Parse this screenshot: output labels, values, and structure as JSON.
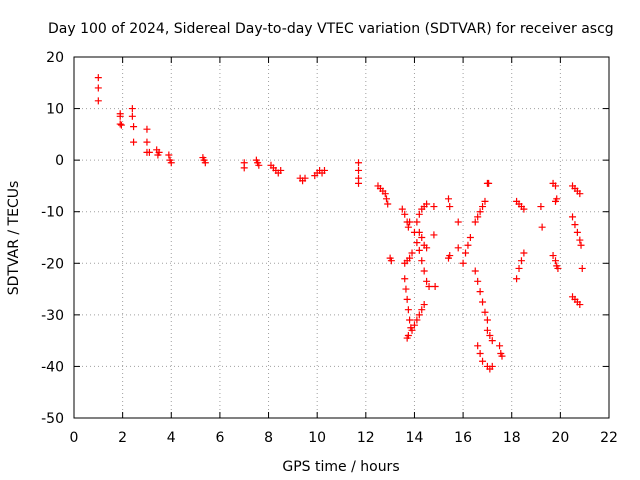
{
  "chart_data": {
    "type": "scatter",
    "title": "Day 100 of 2024, Sidereal Day-to-day VTEC variation (SDTVAR) for receiver ascg",
    "xlabel": "GPS time / hours",
    "ylabel": "SDTVAR / TECUs",
    "xlim": [
      0,
      22
    ],
    "ylim": [
      -50,
      20
    ],
    "x_ticks": [
      "0",
      "2",
      "4",
      "6",
      "8",
      "10",
      "12",
      "14",
      "16",
      "18",
      "20",
      "22"
    ],
    "y_ticks": [
      "20",
      "10",
      "0",
      "-10",
      "-20",
      "-30",
      "-40",
      "-50"
    ],
    "grid": true,
    "marker": "+",
    "color": "#ff0000",
    "series": [
      {
        "name": "SDTVAR",
        "points": [
          [
            1.0,
            16.0
          ],
          [
            1.0,
            14.0
          ],
          [
            1.0,
            11.5
          ],
          [
            1.9,
            9.0
          ],
          [
            1.9,
            8.5
          ],
          [
            1.9,
            7.0
          ],
          [
            1.95,
            6.8
          ],
          [
            2.4,
            10.0
          ],
          [
            2.4,
            8.5
          ],
          [
            2.45,
            6.5
          ],
          [
            2.45,
            3.5
          ],
          [
            3.0,
            6.0
          ],
          [
            3.0,
            3.5
          ],
          [
            3.0,
            1.5
          ],
          [
            3.1,
            1.5
          ],
          [
            3.4,
            2.0
          ],
          [
            3.45,
            1.0
          ],
          [
            3.5,
            1.5
          ],
          [
            3.9,
            1.0
          ],
          [
            3.95,
            0.0
          ],
          [
            4.0,
            -0.5
          ],
          [
            5.3,
            0.5
          ],
          [
            5.35,
            0.0
          ],
          [
            5.4,
            -0.5
          ],
          [
            7.0,
            -0.5
          ],
          [
            7.0,
            -1.5
          ],
          [
            7.5,
            0.0
          ],
          [
            7.55,
            -0.5
          ],
          [
            7.6,
            -1.0
          ],
          [
            8.1,
            -1.0
          ],
          [
            8.2,
            -1.5
          ],
          [
            8.3,
            -2.0
          ],
          [
            8.4,
            -2.5
          ],
          [
            8.5,
            -2.0
          ],
          [
            9.3,
            -3.5
          ],
          [
            9.4,
            -4.0
          ],
          [
            9.5,
            -3.5
          ],
          [
            9.9,
            -3.0
          ],
          [
            10.0,
            -2.5
          ],
          [
            10.1,
            -2.0
          ],
          [
            10.2,
            -2.5
          ],
          [
            10.3,
            -2.0
          ],
          [
            11.7,
            -0.5
          ],
          [
            11.7,
            -2.0
          ],
          [
            11.7,
            -3.5
          ],
          [
            11.7,
            -4.5
          ],
          [
            12.5,
            -5.0
          ],
          [
            12.6,
            -5.5
          ],
          [
            12.7,
            -6.0
          ],
          [
            12.8,
            -6.5
          ],
          [
            12.85,
            -7.5
          ],
          [
            12.9,
            -8.5
          ],
          [
            13.0,
            -19.0
          ],
          [
            13.05,
            -19.5
          ],
          [
            13.5,
            -9.5
          ],
          [
            13.6,
            -10.5
          ],
          [
            13.7,
            -12.0
          ],
          [
            13.75,
            -13.0
          ],
          [
            13.8,
            -12.0
          ],
          [
            13.6,
            -20.0
          ],
          [
            13.7,
            -19.5
          ],
          [
            13.8,
            -19.0
          ],
          [
            13.9,
            -18.0
          ],
          [
            13.6,
            -23.0
          ],
          [
            13.65,
            -25.0
          ],
          [
            13.7,
            -27.0
          ],
          [
            13.75,
            -29.0
          ],
          [
            13.8,
            -31.0
          ],
          [
            13.85,
            -32.5
          ],
          [
            13.7,
            -34.5
          ],
          [
            13.75,
            -34.0
          ],
          [
            13.9,
            -33.0
          ],
          [
            14.0,
            -32.0
          ],
          [
            14.1,
            -31.0
          ],
          [
            14.2,
            -30.0
          ],
          [
            14.3,
            -29.0
          ],
          [
            14.4,
            -28.0
          ],
          [
            14.0,
            -14.0
          ],
          [
            14.1,
            -12.0
          ],
          [
            14.2,
            -10.5
          ],
          [
            14.3,
            -9.5
          ],
          [
            14.4,
            -9.0
          ],
          [
            14.5,
            -8.5
          ],
          [
            14.1,
            -16.0
          ],
          [
            14.2,
            -17.5
          ],
          [
            14.3,
            -19.5
          ],
          [
            14.4,
            -21.5
          ],
          [
            14.5,
            -23.5
          ],
          [
            14.6,
            -24.5
          ],
          [
            14.2,
            -14.0
          ],
          [
            14.3,
            -15.0
          ],
          [
            14.4,
            -16.5
          ],
          [
            14.5,
            -17.0
          ],
          [
            14.8,
            -9.0
          ],
          [
            14.8,
            -14.5
          ],
          [
            14.85,
            -24.5
          ],
          [
            15.4,
            -7.5
          ],
          [
            15.45,
            -9.0
          ],
          [
            15.4,
            -19.0
          ],
          [
            15.45,
            -18.5
          ],
          [
            15.8,
            -12.0
          ],
          [
            15.8,
            -17.0
          ],
          [
            16.0,
            -20.0
          ],
          [
            16.1,
            -18.0
          ],
          [
            16.2,
            -16.5
          ],
          [
            16.3,
            -15.0
          ],
          [
            16.5,
            -12.0
          ],
          [
            16.6,
            -11.0
          ],
          [
            16.7,
            -10.0
          ],
          [
            16.8,
            -9.0
          ],
          [
            16.9,
            -8.0
          ],
          [
            16.5,
            -21.5
          ],
          [
            16.6,
            -23.5
          ],
          [
            16.7,
            -25.5
          ],
          [
            16.8,
            -27.5
          ],
          [
            16.9,
            -29.5
          ],
          [
            17.0,
            -31.0
          ],
          [
            16.6,
            -36.0
          ],
          [
            16.7,
            -37.5
          ],
          [
            16.8,
            -39.0
          ],
          [
            17.0,
            -4.5
          ],
          [
            17.05,
            -4.5
          ],
          [
            17.0,
            -33.0
          ],
          [
            17.1,
            -34.0
          ],
          [
            17.2,
            -35.0
          ],
          [
            17.0,
            -40.0
          ],
          [
            17.1,
            -40.5
          ],
          [
            17.2,
            -40.0
          ],
          [
            17.5,
            -36.0
          ],
          [
            17.55,
            -37.5
          ],
          [
            17.6,
            -38.0
          ],
          [
            18.2,
            -8.0
          ],
          [
            18.3,
            -8.5
          ],
          [
            18.4,
            -9.0
          ],
          [
            18.5,
            -9.5
          ],
          [
            18.2,
            -23.0
          ],
          [
            18.3,
            -21.0
          ],
          [
            18.4,
            -19.5
          ],
          [
            18.5,
            -18.0
          ],
          [
            19.2,
            -9.0
          ],
          [
            19.25,
            -13.0
          ],
          [
            19.7,
            -4.5
          ],
          [
            19.8,
            -5.0
          ],
          [
            19.8,
            -8.0
          ],
          [
            19.85,
            -7.5
          ],
          [
            19.7,
            -18.5
          ],
          [
            19.8,
            -19.5
          ],
          [
            19.85,
            -20.5
          ],
          [
            19.9,
            -21.0
          ],
          [
            20.5,
            -5.0
          ],
          [
            20.6,
            -5.5
          ],
          [
            20.7,
            -6.0
          ],
          [
            20.8,
            -6.5
          ],
          [
            20.5,
            -11.0
          ],
          [
            20.6,
            -12.5
          ],
          [
            20.7,
            -14.0
          ],
          [
            20.8,
            -15.5
          ],
          [
            20.85,
            -16.5
          ],
          [
            20.5,
            -26.5
          ],
          [
            20.6,
            -27.0
          ],
          [
            20.7,
            -27.5
          ],
          [
            20.8,
            -28.0
          ],
          [
            20.9,
            -21.0
          ]
        ]
      }
    ]
  }
}
